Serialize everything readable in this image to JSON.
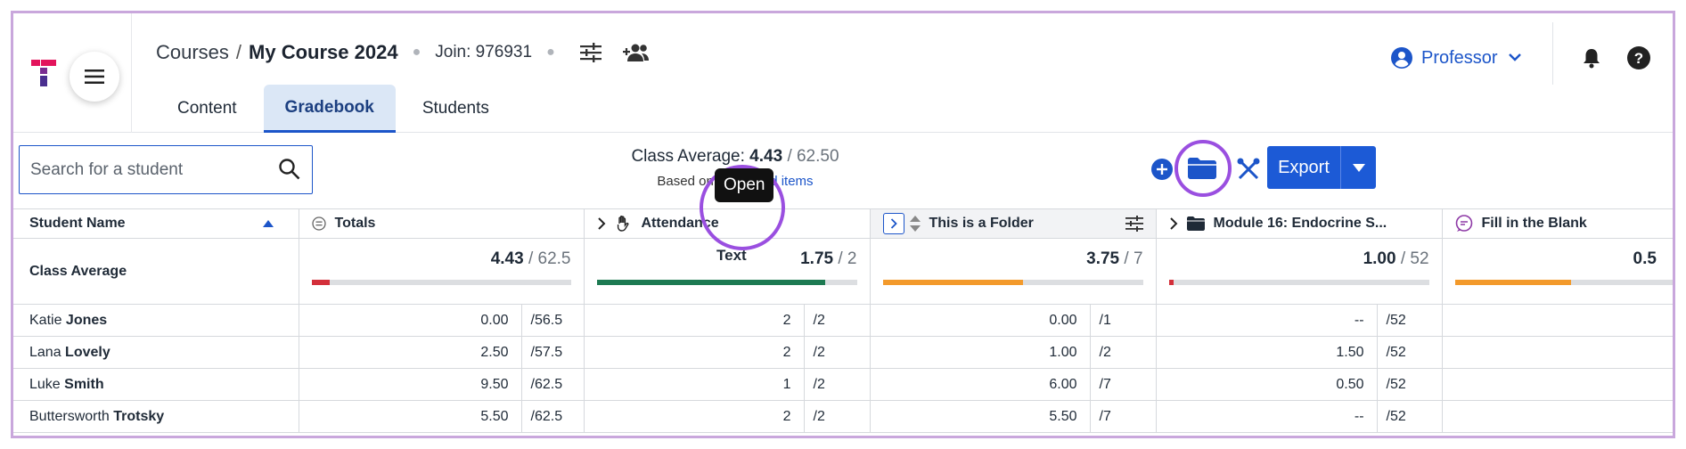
{
  "header": {
    "breadcrumb_root": "Courses",
    "breadcrumb_sep": "/",
    "course_name": "My Course 2024",
    "join_code": "Join: 976931",
    "role_label": "Professor"
  },
  "tabs": [
    {
      "label": "Content"
    },
    {
      "label": "Gradebook"
    },
    {
      "label": "Students"
    }
  ],
  "toolbar": {
    "search_placeholder": "Search for a student",
    "class_avg_label": "Class Average:",
    "class_avg_value": "4.43",
    "class_avg_total": "/ 62.50",
    "based_on_prefix": "Based on",
    "based_on_link": "13 graded items",
    "export_label": "Export",
    "tooltip": "Open",
    "hover_text": "Text"
  },
  "columns": [
    {
      "label": "Student Name",
      "icon": "sort-asc-icon"
    },
    {
      "label": "Totals",
      "icon": "totals-icon"
    },
    {
      "label": "Attendance",
      "icon": "hand-wave-icon"
    },
    {
      "label": "This is a Folder",
      "icon": "folder-sort-icon"
    },
    {
      "label": "Module 16: Endocrine S...",
      "icon": "folder-icon"
    },
    {
      "label": "Fill in the Blank",
      "icon": "chat-icon"
    }
  ],
  "class_average": {
    "label": "Class Average",
    "cells": [
      {
        "value": "4.43",
        "total": "/ 62.5",
        "pct": 7,
        "color": "#d32f3a"
      },
      {
        "value": "1.75",
        "total": "/ 2",
        "pct": 88,
        "color": "#1d7a52"
      },
      {
        "value": "3.75",
        "total": "/ 7",
        "pct": 54,
        "color": "#f39a2b"
      },
      {
        "value": "1.00",
        "total": "/ 52",
        "pct": 2,
        "color": "#d32f3a"
      },
      {
        "value": "0.5",
        "total": "",
        "pct": 50,
        "color": "#f39a2b"
      }
    ]
  },
  "students": [
    {
      "first": "Katie",
      "last": "Jones",
      "scores": [
        [
          "0.00",
          "/56.5"
        ],
        [
          "2",
          "/2"
        ],
        [
          "0.00",
          "/1"
        ],
        [
          "--",
          "/52"
        ]
      ]
    },
    {
      "first": "Lana",
      "last": "Lovely",
      "scores": [
        [
          "2.50",
          "/57.5"
        ],
        [
          "2",
          "/2"
        ],
        [
          "1.00",
          "/2"
        ],
        [
          "1.50",
          "/52"
        ]
      ]
    },
    {
      "first": "Luke",
      "last": "Smith",
      "scores": [
        [
          "9.50",
          "/62.5"
        ],
        [
          "1",
          "/2"
        ],
        [
          "6.00",
          "/7"
        ],
        [
          "0.50",
          "/52"
        ]
      ]
    },
    {
      "first": "Buttersworth",
      "last": "Trotsky",
      "scores": [
        [
          "5.50",
          "/62.5"
        ],
        [
          "2",
          "/2"
        ],
        [
          "5.50",
          "/7"
        ],
        [
          "--",
          "/52"
        ]
      ]
    }
  ]
}
